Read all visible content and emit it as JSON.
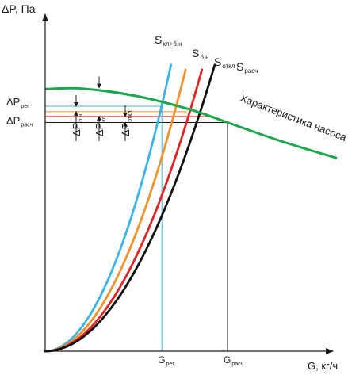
{
  "chart_data": {
    "type": "line",
    "axes": {
      "y_label": "ΔP, Па",
      "x_label": "G, кг/ч"
    },
    "colors": {
      "pump": "#1aa64a",
      "s_kl_bn": "#3ab4e6",
      "s_bn": "#f0922a",
      "s_otkl": "#e02424",
      "s_rasch": "#111111",
      "ref_reg": "#3ab4e6",
      "ref_bn": "#f0922a",
      "ref_otkl": "#e02424",
      "ref_rasch": "#111111"
    },
    "series": [
      {
        "key": "s_kl_bn",
        "name": {
          "main": "S",
          "sub": "кл+б.н"
        },
        "k": 2.18
      },
      {
        "key": "s_bn",
        "name": {
          "main": "S",
          "sub": "б.н"
        },
        "k": 1.72
      },
      {
        "key": "s_otkl",
        "name": {
          "main": "S",
          "sub": "откл"
        },
        "k": 1.38
      },
      {
        "key": "s_rasch",
        "name": {
          "main": "S",
          "sub": "расч"
        },
        "k": 1.2
      }
    ],
    "pump_curve": {
      "label": "Характеристика насоса",
      "points": [
        [
          0,
          0.95
        ],
        [
          0.2,
          0.952
        ],
        [
          0.5,
          0.925
        ],
        [
          0.8,
          0.875
        ],
        [
          1.0,
          0.829
        ],
        [
          1.3,
          0.76
        ],
        [
          1.6,
          0.7
        ]
      ]
    },
    "reference_lines": {
      "G_reg": 0.64,
      "G_rasch": 1.0,
      "dP_reg": 0.888,
      "dP_bn": 0.868,
      "dP_otkl": 0.851,
      "dP_rasch": 0.829
    },
    "x_ticks": [
      {
        "key": "G_reg",
        "main": "G",
        "sub": "рег"
      },
      {
        "key": "G_rasch",
        "main": "G",
        "sub": "расч"
      }
    ],
    "y_ticks": [
      {
        "key": "dP_reg",
        "main": "ΔP",
        "sub": "рег"
      },
      {
        "key": "dP_rasch",
        "main": "ΔP",
        "sub": "расч"
      }
    ],
    "delta_labels": [
      {
        "main": "ΔP",
        "sub": "б.н"
      },
      {
        "main": "ΔP",
        "sub": "кл"
      },
      {
        "main": "ΔP",
        "sub": "откл"
      }
    ]
  }
}
